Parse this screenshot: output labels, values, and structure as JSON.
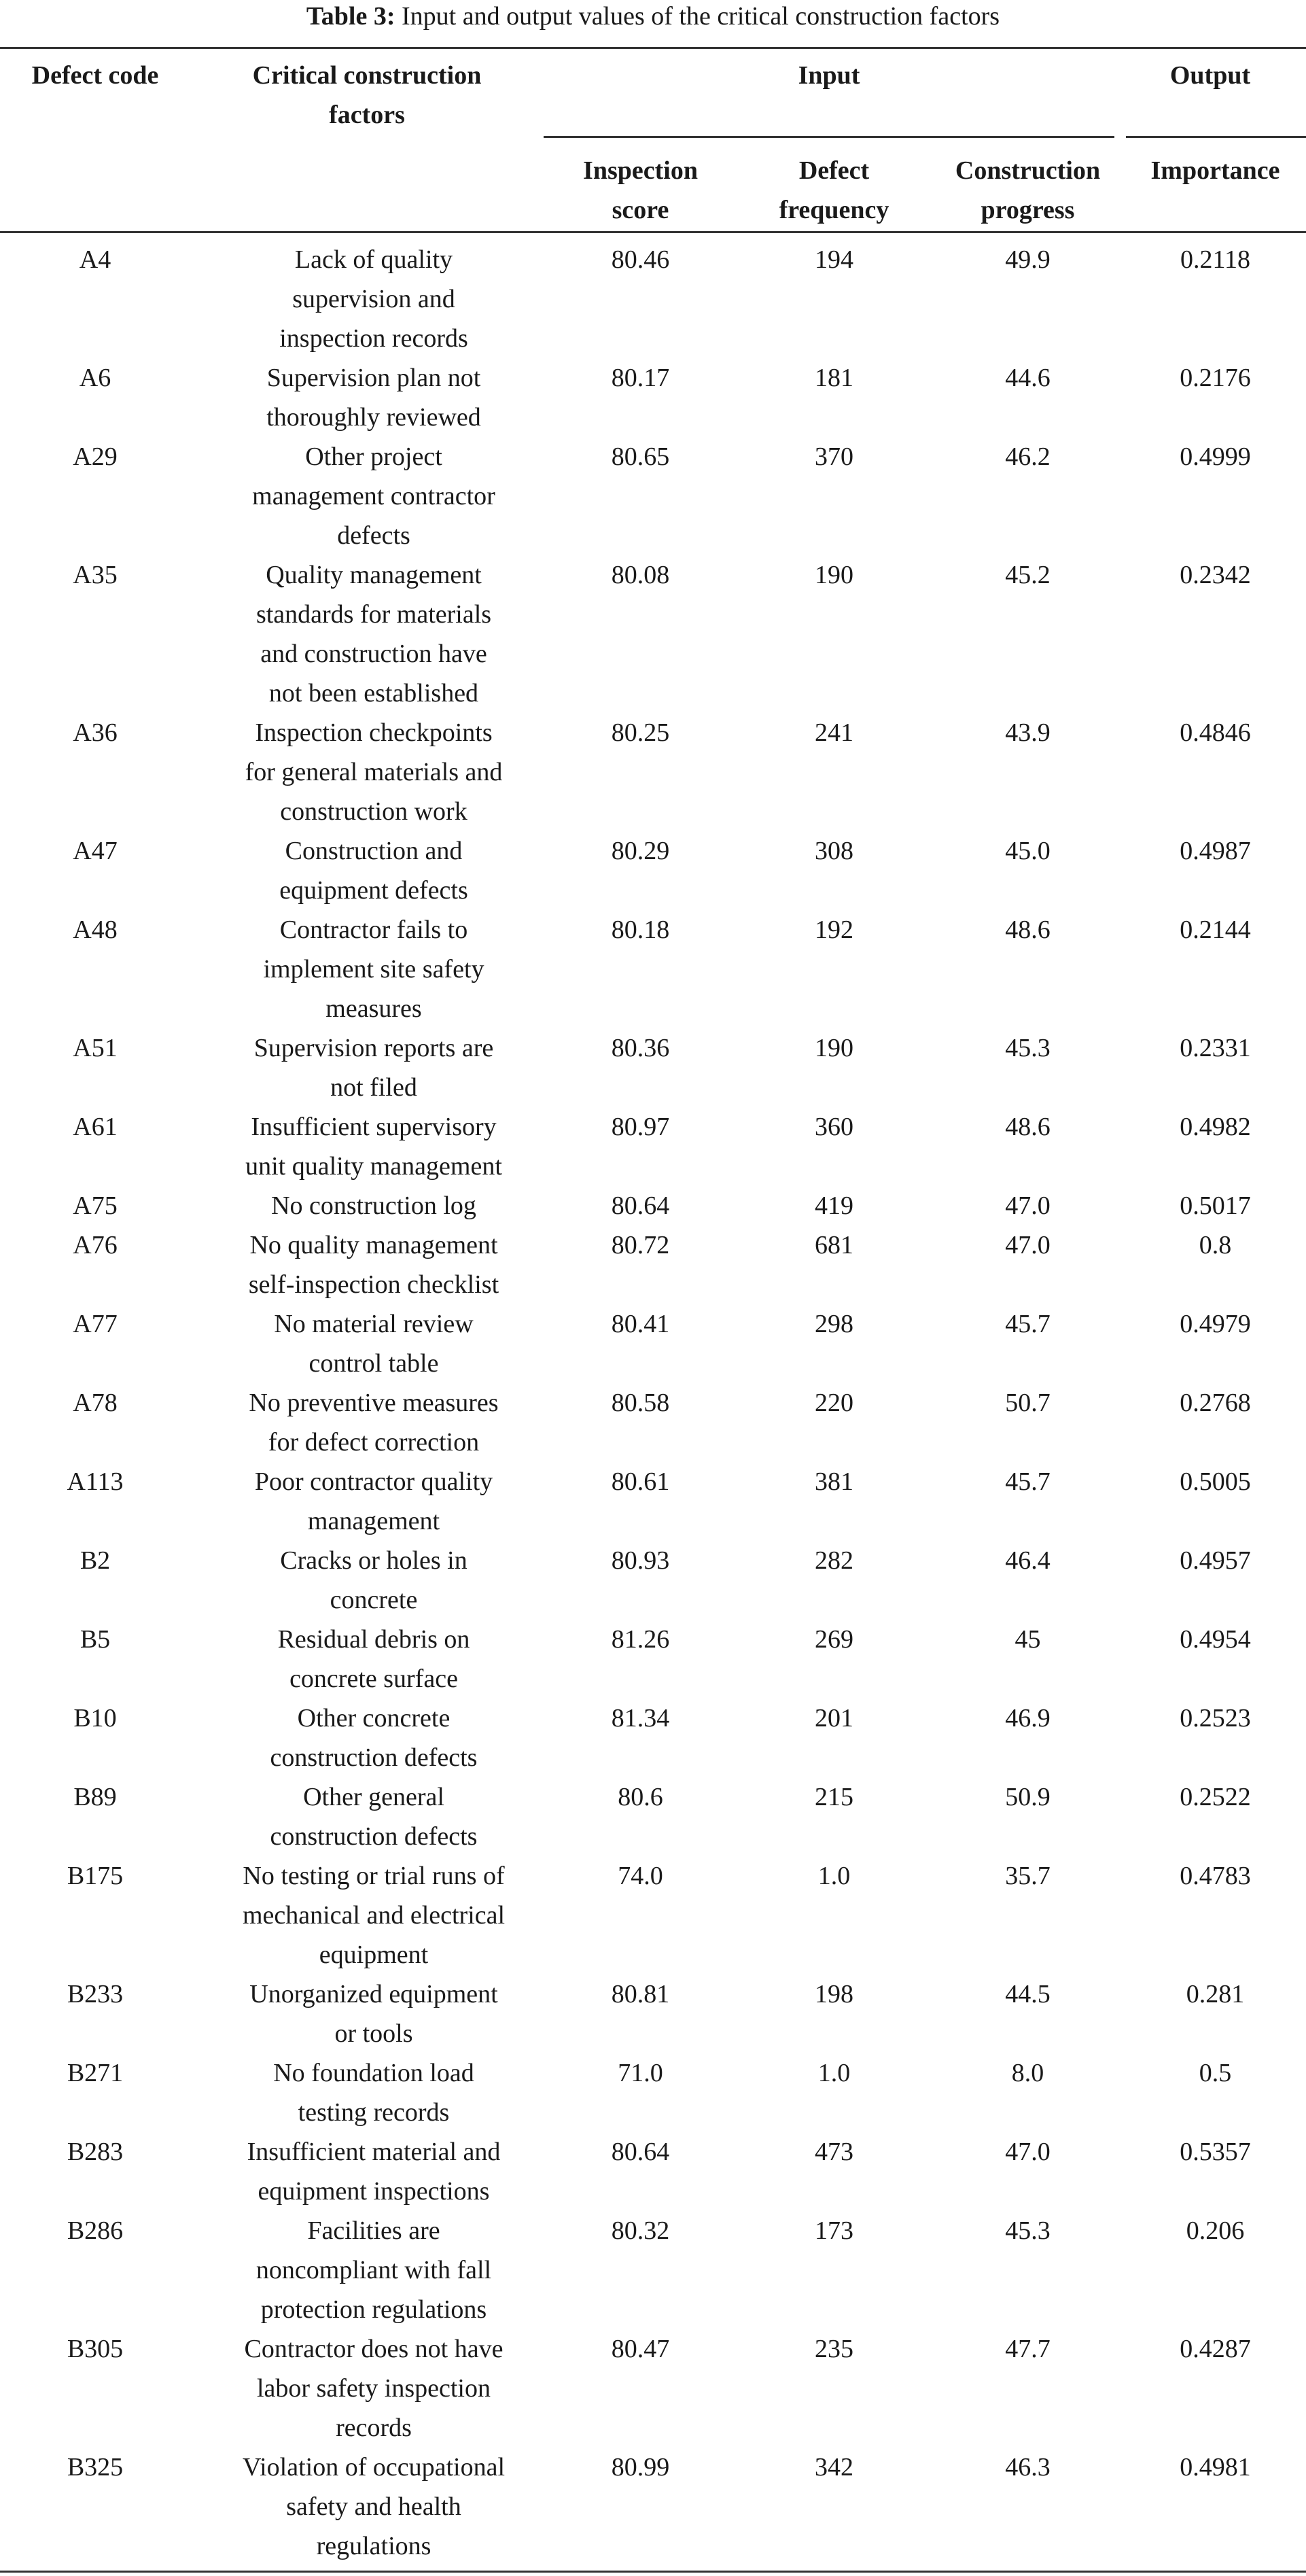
{
  "caption": {
    "label": "Table 3:",
    "text": " Input and output values of the critical construction factors"
  },
  "headers": {
    "defect_code": "Defect code",
    "factors_line1": "Critical construction",
    "factors_line2": "factors",
    "input": "Input",
    "output": "Output",
    "score_line1": "Inspection",
    "score_line2": "score",
    "freq_line1": "Defect",
    "freq_line2": "frequency",
    "prog_line1": "Construction",
    "prog_line2": "progress",
    "importance": "Importance"
  },
  "rows": [
    {
      "code": "A4",
      "factor": [
        "Lack of quality",
        "supervision and",
        "inspection records"
      ],
      "score": "80.46",
      "frequency": "194",
      "progress": "49.9",
      "importance": "0.2118"
    },
    {
      "code": "A6",
      "factor": [
        "Supervision plan not",
        "thoroughly reviewed"
      ],
      "score": "80.17",
      "frequency": "181",
      "progress": "44.6",
      "importance": "0.2176"
    },
    {
      "code": "A29",
      "factor": [
        "Other project",
        "management contractor",
        "defects"
      ],
      "score": "80.65",
      "frequency": "370",
      "progress": "46.2",
      "importance": "0.4999"
    },
    {
      "code": "A35",
      "factor": [
        "Quality management",
        "standards for materials",
        "and construction have",
        "not been established"
      ],
      "score": "80.08",
      "frequency": "190",
      "progress": "45.2",
      "importance": "0.2342"
    },
    {
      "code": "A36",
      "factor": [
        "Inspection checkpoints",
        "for general materials and",
        "construction work"
      ],
      "score": "80.25",
      "frequency": "241",
      "progress": "43.9",
      "importance": "0.4846"
    },
    {
      "code": "A47",
      "factor": [
        "Construction and",
        "equipment defects"
      ],
      "score": "80.29",
      "frequency": "308",
      "progress": "45.0",
      "importance": "0.4987"
    },
    {
      "code": "A48",
      "factor": [
        "Contractor fails to",
        "implement site safety",
        "measures"
      ],
      "score": "80.18",
      "frequency": "192",
      "progress": "48.6",
      "importance": "0.2144"
    },
    {
      "code": "A51",
      "factor": [
        "Supervision reports are",
        "not filed"
      ],
      "score": "80.36",
      "frequency": "190",
      "progress": "45.3",
      "importance": "0.2331"
    },
    {
      "code": "A61",
      "factor": [
        "Insufficient supervisory",
        "unit quality management"
      ],
      "score": "80.97",
      "frequency": "360",
      "progress": "48.6",
      "importance": "0.4982"
    },
    {
      "code": "A75",
      "factor": [
        "No construction log"
      ],
      "score": "80.64",
      "frequency": "419",
      "progress": "47.0",
      "importance": "0.5017"
    },
    {
      "code": "A76",
      "factor": [
        "No quality management",
        "self-inspection checklist"
      ],
      "score": "80.72",
      "frequency": "681",
      "progress": "47.0",
      "importance": "0.8"
    },
    {
      "code": "A77",
      "factor": [
        "No material review",
        "control table"
      ],
      "score": "80.41",
      "frequency": "298",
      "progress": "45.7",
      "importance": "0.4979"
    },
    {
      "code": "A78",
      "factor": [
        "No preventive measures",
        "for defect correction"
      ],
      "score": "80.58",
      "frequency": "220",
      "progress": "50.7",
      "importance": "0.2768"
    },
    {
      "code": "A113",
      "factor": [
        "Poor contractor quality",
        "management"
      ],
      "score": "80.61",
      "frequency": "381",
      "progress": "45.7",
      "importance": "0.5005"
    },
    {
      "code": "B2",
      "factor": [
        "Cracks or holes in",
        "concrete"
      ],
      "score": "80.93",
      "frequency": "282",
      "progress": "46.4",
      "importance": "0.4957"
    },
    {
      "code": "B5",
      "factor": [
        "Residual debris on",
        "concrete surface"
      ],
      "score": "81.26",
      "frequency": "269",
      "progress": "45",
      "importance": "0.4954"
    },
    {
      "code": "B10",
      "factor": [
        "Other concrete",
        "construction defects"
      ],
      "score": "81.34",
      "frequency": "201",
      "progress": "46.9",
      "importance": "0.2523"
    },
    {
      "code": "B89",
      "factor": [
        "Other general",
        "construction defects"
      ],
      "score": "80.6",
      "frequency": "215",
      "progress": "50.9",
      "importance": "0.2522"
    },
    {
      "code": "B175",
      "factor": [
        "No testing or trial runs of",
        "mechanical and electrical",
        "equipment"
      ],
      "score": "74.0",
      "frequency": "1.0",
      "progress": "35.7",
      "importance": "0.4783"
    },
    {
      "code": "B233",
      "factor": [
        "Unorganized equipment",
        "or tools"
      ],
      "score": "80.81",
      "frequency": "198",
      "progress": "44.5",
      "importance": "0.281"
    },
    {
      "code": "B271",
      "factor": [
        "No foundation load",
        "testing records"
      ],
      "score": "71.0",
      "frequency": "1.0",
      "progress": "8.0",
      "importance": "0.5"
    },
    {
      "code": "B283",
      "factor": [
        "Insufficient material and",
        "equipment inspections"
      ],
      "score": "80.64",
      "frequency": "473",
      "progress": "47.0",
      "importance": "0.5357"
    },
    {
      "code": "B286",
      "factor": [
        "Facilities are",
        "noncompliant with fall",
        "protection regulations"
      ],
      "score": "80.32",
      "frequency": "173",
      "progress": "45.3",
      "importance": "0.206"
    },
    {
      "code": "B305",
      "factor": [
        "Contractor does not have",
        "labor safety inspection",
        "records"
      ],
      "score": "80.47",
      "frequency": "235",
      "progress": "47.7",
      "importance": "0.4287"
    },
    {
      "code": "B325",
      "factor": [
        "Violation of occupational",
        "safety and health",
        "regulations"
      ],
      "score": "80.99",
      "frequency": "342",
      "progress": "46.3",
      "importance": "0.4981"
    }
  ]
}
